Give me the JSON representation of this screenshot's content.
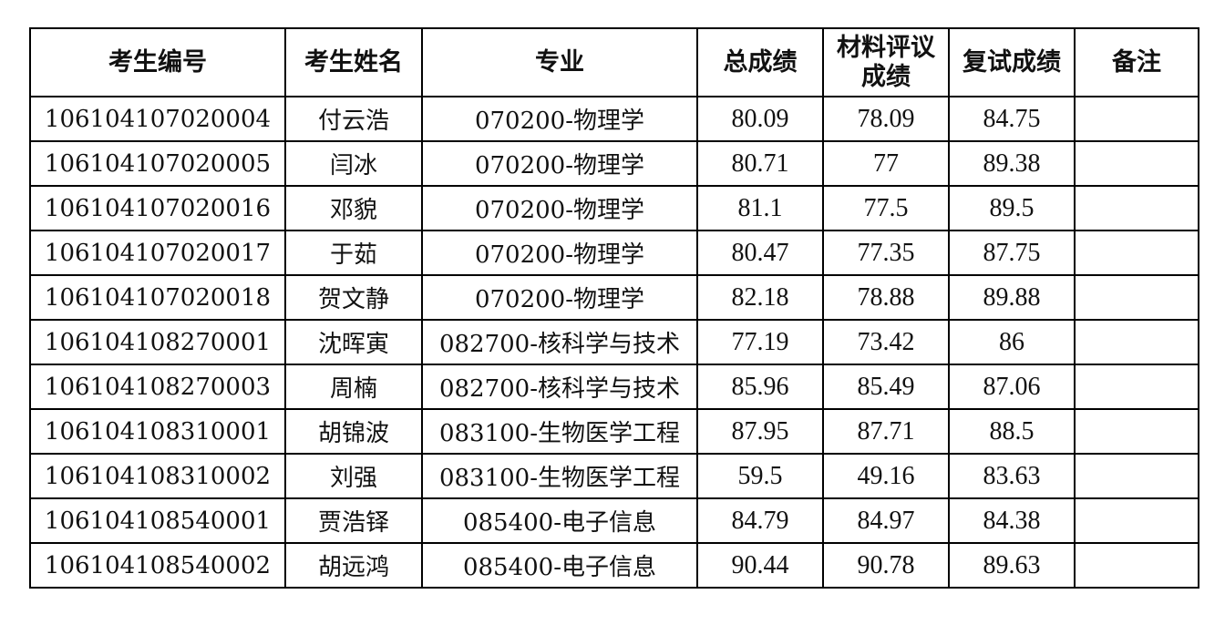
{
  "table": {
    "headers": [
      "考生编号",
      "考生姓名",
      "专业",
      "总成绩",
      "材料评议成绩",
      "复试成绩",
      "备注"
    ],
    "rows": [
      [
        "106104107020004",
        "付云浩",
        "070200-物理学",
        "80.09",
        "78.09",
        "84.75",
        ""
      ],
      [
        "106104107020005",
        "闫冰",
        "070200-物理学",
        "80.71",
        "77",
        "89.38",
        ""
      ],
      [
        "106104107020016",
        "邓貌",
        "070200-物理学",
        "81.1",
        "77.5",
        "89.5",
        ""
      ],
      [
        "106104107020017",
        "于茹",
        "070200-物理学",
        "80.47",
        "77.35",
        "87.75",
        ""
      ],
      [
        "106104107020018",
        "贺文静",
        "070200-物理学",
        "82.18",
        "78.88",
        "89.88",
        ""
      ],
      [
        "106104108270001",
        "沈晖寅",
        "082700-核科学与技术",
        "77.19",
        "73.42",
        "86",
        ""
      ],
      [
        "106104108270003",
        "周楠",
        "082700-核科学与技术",
        "85.96",
        "85.49",
        "87.06",
        ""
      ],
      [
        "106104108310001",
        "胡锦波",
        "083100-生物医学工程",
        "87.95",
        "87.71",
        "88.5",
        ""
      ],
      [
        "106104108310002",
        "刘强",
        "083100-生物医学工程",
        "59.5",
        "49.16",
        "83.63",
        ""
      ],
      [
        "106104108540001",
        "贾浩铎",
        "085400-电子信息",
        "84.79",
        "84.97",
        "84.38",
        ""
      ],
      [
        "106104108540002",
        "胡远鸿",
        "085400-电子信息",
        "90.44",
        "90.78",
        "89.63",
        ""
      ]
    ]
  }
}
